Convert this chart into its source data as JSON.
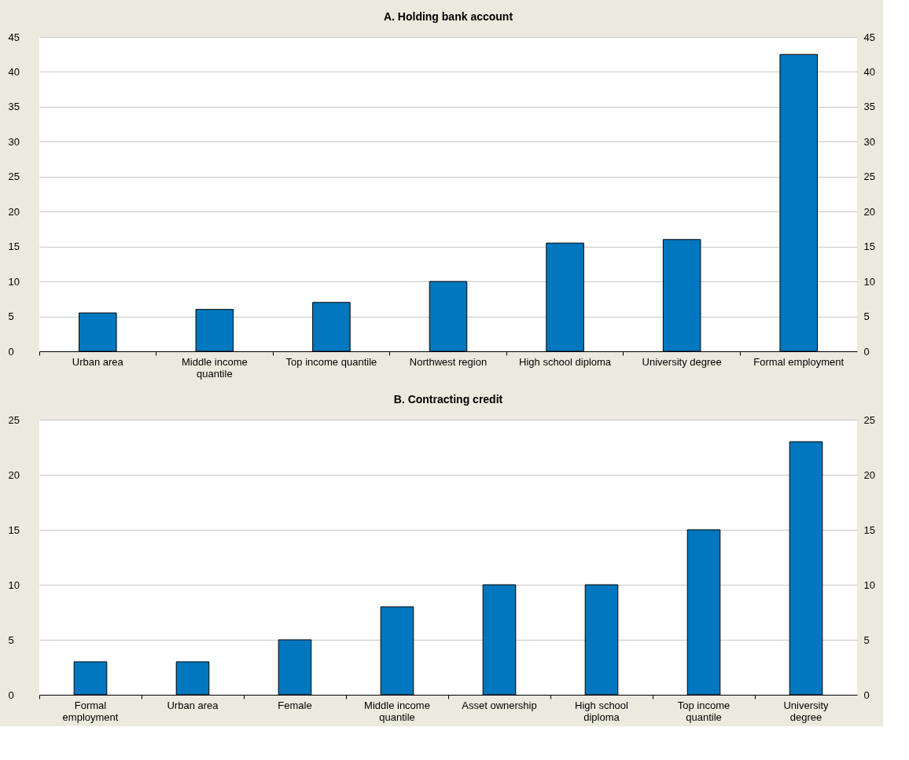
{
  "chart_data": [
    {
      "type": "bar",
      "title": "A. Holding bank account",
      "categories": [
        "Urban area",
        "Middle income quantile",
        "Top income quantile",
        "Northwest region",
        "High school diploma",
        "University degree",
        "Formal employment"
      ],
      "values": [
        5.5,
        6,
        7,
        10,
        15.5,
        16,
        42.5
      ],
      "color": "#0077be",
      "ylim": [
        0,
        45
      ],
      "yticks": [
        0,
        5,
        10,
        15,
        20,
        25,
        30,
        35,
        40,
        45
      ],
      "y2lim": [
        0,
        45
      ],
      "y2ticks": [
        0,
        5,
        10,
        15,
        20,
        25,
        30,
        35,
        40,
        45
      ],
      "grid": "y"
    },
    {
      "type": "bar",
      "title": "B. Contracting credit",
      "categories": [
        "Formal employment",
        "Urban area",
        "Female",
        "Middle income quantile",
        "Asset ownership",
        "High school diploma",
        "Top income quantile",
        "University degree"
      ],
      "values": [
        3,
        3,
        5,
        8,
        10,
        10,
        15,
        23
      ],
      "color": "#0077be",
      "ylim": [
        0,
        25
      ],
      "yticks": [
        0,
        5,
        10,
        15,
        20,
        25
      ],
      "y2lim": [
        0,
        25
      ],
      "y2ticks": [
        0,
        5,
        10,
        15,
        20,
        25
      ],
      "grid": "y"
    }
  ]
}
